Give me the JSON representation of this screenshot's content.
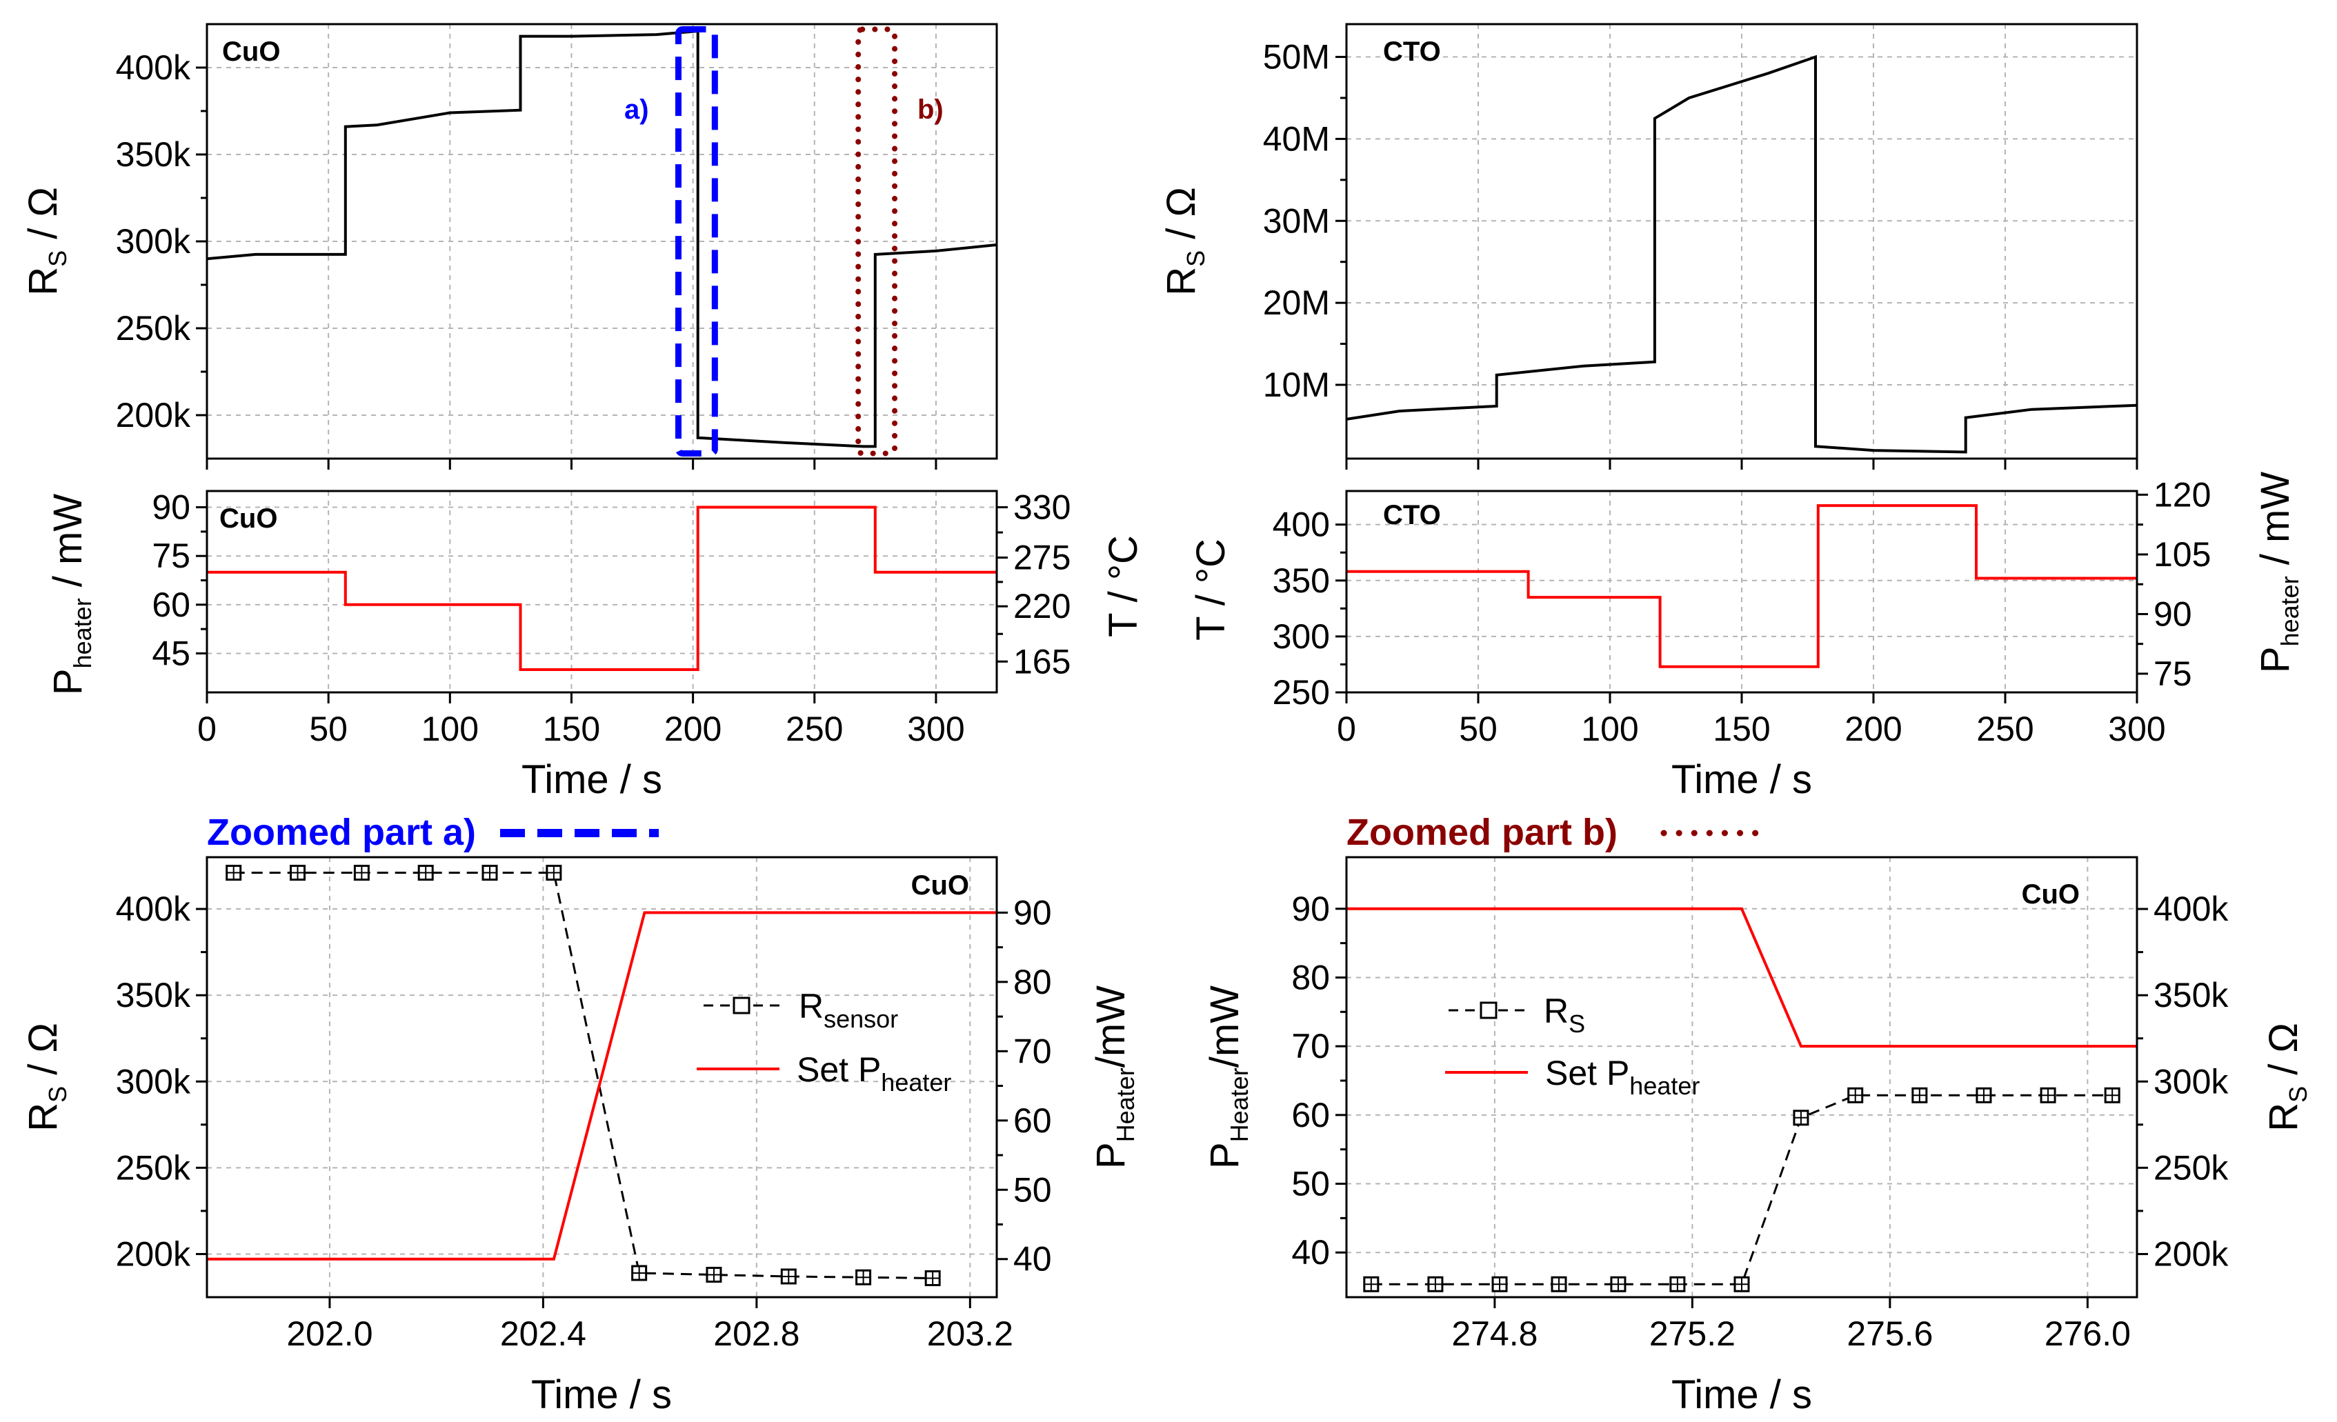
{
  "chart_data": [
    {
      "id": "cuo_rs",
      "type": "line",
      "panel_label": "CuO",
      "ylabel": "R",
      "ylabel_sub": "S",
      "ylabel_unit": " / Ω",
      "xlim": [
        0,
        325
      ],
      "ylim": [
        175000,
        425000
      ],
      "yticks": [
        200000,
        250000,
        300000,
        350000,
        400000
      ],
      "ytick_labels": [
        "200k",
        "250k",
        "300k",
        "350k",
        "400k"
      ],
      "series": [
        {
          "name": "R_S CuO",
          "color": "#000000",
          "x": [
            0,
            20,
            50,
            57,
            57,
            70,
            100,
            129,
            129,
            150,
            185,
            202,
            202,
            240,
            270,
            275,
            275,
            300,
            325
          ],
          "y": [
            290000,
            292500,
            292500,
            292500,
            366000,
            367000,
            374000,
            375500,
            418000,
            418000,
            419000,
            421000,
            187000,
            184000,
            182000,
            182000,
            292500,
            294500,
            298000
          ]
        }
      ],
      "annotations": [
        {
          "text": "a)",
          "color": "#0000ff",
          "x_range": [
            194,
            209
          ],
          "y_range": [
            178000,
            422000
          ],
          "style": "dashed"
        },
        {
          "text": "b)",
          "color": "#8b0000",
          "x_range": [
            268,
            283
          ],
          "y_range": [
            178000,
            422000
          ],
          "style": "dotted"
        }
      ]
    },
    {
      "id": "cuo_heater",
      "type": "line",
      "panel_label": "CuO",
      "xlabel": "Time / s",
      "xlim": [
        0,
        325
      ],
      "xticks": [
        0,
        50,
        100,
        150,
        200,
        250,
        300
      ],
      "xtick_labels": [
        "0",
        "50",
        "100",
        "150",
        "200",
        "250",
        "300"
      ],
      "ylabel_left": "P",
      "ylabel_left_sub": "heater",
      "ylabel_left_unit": " / mW",
      "ylim_left": [
        33,
        95
      ],
      "yticks_left": [
        45,
        60,
        75,
        90
      ],
      "ytick_labels_left": [
        "45",
        "60",
        "75",
        "90"
      ],
      "ylabel_right": "T / °C",
      "ytick_labels_right": [
        "165",
        "220",
        "275",
        "330"
      ],
      "yticks_right_at_left_values": [
        42.5,
        59.5,
        74.5,
        90
      ],
      "series": [
        {
          "name": "P_heater CuO",
          "color": "#ff0000",
          "x": [
            0,
            57,
            57,
            129,
            129,
            202,
            202,
            275,
            275,
            325
          ],
          "y": [
            70,
            70,
            60,
            60,
            40,
            40,
            90,
            90,
            70,
            70
          ]
        }
      ]
    },
    {
      "id": "cto_rs",
      "type": "line",
      "panel_label": "CTO",
      "ylabel": "R",
      "ylabel_sub": "S",
      "ylabel_unit": " / Ω",
      "xlim": [
        0,
        300
      ],
      "ylim": [
        1000000,
        54000000
      ],
      "yticks": [
        10000000,
        20000000,
        30000000,
        40000000,
        50000000
      ],
      "ytick_labels": [
        "10M",
        "20M",
        "30M",
        "40M",
        "50M"
      ],
      "series": [
        {
          "name": "R_S CTO",
          "color": "#000000",
          "x": [
            0,
            20,
            57,
            57,
            90,
            117,
            117,
            130,
            160,
            178,
            178,
            200,
            235,
            235,
            260,
            300
          ],
          "y": [
            5800000,
            6800000,
            7400000,
            11200000,
            12300000,
            12800000,
            42500000,
            45000000,
            48000000,
            50000000,
            2500000,
            2000000,
            1800000,
            6000000,
            7000000,
            7500000
          ]
        }
      ]
    },
    {
      "id": "cto_heater",
      "type": "line",
      "panel_label": "CTO",
      "xlabel": "Time / s",
      "xlim": [
        0,
        300
      ],
      "xticks": [
        0,
        50,
        100,
        150,
        200,
        250,
        300
      ],
      "xtick_labels": [
        "0",
        "50",
        "100",
        "150",
        "200",
        "250",
        "300"
      ],
      "ylabel_left": "T / °C",
      "ylim_left": [
        250,
        430
      ],
      "yticks_left": [
        250,
        300,
        350,
        400
      ],
      "ytick_labels_left": [
        "250",
        "300",
        "350",
        "400"
      ],
      "ylabel_right": "P",
      "ylabel_right_sub": "heater",
      "ylabel_right_unit": " / mW",
      "ytick_labels_right": [
        "75",
        "90",
        "105",
        "120"
      ],
      "yticks_right_at_left_values": [
        266.7,
        320,
        373.3,
        426.7
      ],
      "series": [
        {
          "name": "T CTO",
          "color": "#ff0000",
          "x": [
            0,
            69,
            69,
            119,
            119,
            179,
            179,
            239,
            239,
            300
          ],
          "y": [
            358,
            358,
            335,
            335,
            273,
            273,
            417,
            417,
            352,
            352
          ]
        }
      ]
    },
    {
      "id": "zoom_a",
      "type": "line",
      "title": "Zoomed part a)",
      "panel_label": "CuO",
      "xlabel": "Time / s",
      "xlim": [
        201.77,
        203.25
      ],
      "xticks": [
        202.0,
        202.4,
        202.8,
        203.2
      ],
      "xtick_labels": [
        "202.0",
        "202.4",
        "202.8",
        "203.2"
      ],
      "ylabel_left": "R",
      "ylabel_left_sub": "S",
      "ylabel_left_unit": " / Ω",
      "ylim_left": [
        175000,
        430000
      ],
      "yticks_left": [
        200000,
        250000,
        300000,
        350000,
        400000
      ],
      "ytick_labels_left": [
        "200k",
        "250k",
        "300k",
        "350k",
        "400k"
      ],
      "ylabel_right": "P",
      "ylabel_right_sub": "Heater",
      "ylabel_right_unit": "/mW",
      "ylim_right": [
        34.5,
        98
      ],
      "yticks_right": [
        40,
        50,
        60,
        70,
        80,
        90
      ],
      "ytick_labels_right": [
        "40",
        "50",
        "60",
        "70",
        "80",
        "90"
      ],
      "legend": [
        {
          "label": "R",
          "label_sub": "sensor",
          "style": "dashed-square"
        },
        {
          "label": "Set P",
          "label_sub": "heater",
          "style": "solid"
        }
      ],
      "series": [
        {
          "name": "R_sensor",
          "axis": "left",
          "color": "#000000",
          "style": "dashed-square",
          "x": [
            201.82,
            201.94,
            202.06,
            202.18,
            202.3,
            202.42,
            202.58,
            202.72,
            202.86,
            203.0,
            203.13
          ],
          "y": [
            421000,
            421000,
            421000,
            421000,
            421000,
            421000,
            189000,
            188000,
            187000,
            186500,
            186000
          ]
        },
        {
          "name": "Set P_heater",
          "axis": "right",
          "color": "#ff0000",
          "style": "solid",
          "x": [
            201.77,
            202.42,
            202.59,
            203.25
          ],
          "y": [
            40,
            40,
            90,
            90
          ]
        }
      ]
    },
    {
      "id": "zoom_b",
      "type": "line",
      "title": "Zoomed part b)",
      "panel_label": "CuO",
      "xlabel": "Time / s",
      "xlim": [
        274.5,
        276.1
      ],
      "xticks": [
        274.8,
        275.2,
        275.6,
        276.0
      ],
      "xtick_labels": [
        "274.8",
        "275.2",
        "275.6",
        "276.0"
      ],
      "ylabel_left": "P",
      "ylabel_left_sub": "Heater",
      "ylabel_left_unit": "/mW",
      "ylim_left": [
        33.5,
        97.5
      ],
      "yticks_left": [
        40,
        50,
        60,
        70,
        80,
        90
      ],
      "ytick_labels_left": [
        "40",
        "50",
        "60",
        "70",
        "80",
        "90"
      ],
      "ylabel_right": "R",
      "ylabel_right_sub": "S",
      "ylabel_right_unit": " / Ω",
      "ylim_right": [
        175000,
        430000
      ],
      "yticks_right": [
        200000,
        250000,
        300000,
        350000,
        400000
      ],
      "ytick_labels_right": [
        "200k",
        "250k",
        "300k",
        "350k",
        "400k"
      ],
      "legend": [
        {
          "label": "R",
          "label_sub": "S",
          "style": "dashed-square"
        },
        {
          "label": "Set P",
          "label_sub": "heater",
          "style": "solid"
        }
      ],
      "series": [
        {
          "name": "R_S",
          "axis": "right",
          "color": "#000000",
          "style": "dashed-square",
          "x": [
            274.55,
            274.68,
            274.81,
            274.93,
            275.05,
            275.17,
            275.3,
            275.42,
            275.53,
            275.66,
            275.79,
            275.92,
            276.05
          ],
          "y": [
            182500,
            182500,
            182500,
            182500,
            182500,
            182500,
            182500,
            279000,
            292000,
            292000,
            292000,
            292000,
            292000
          ]
        },
        {
          "name": "Set P_heater",
          "axis": "left",
          "color": "#ff0000",
          "style": "solid",
          "x": [
            274.5,
            275.3,
            275.42,
            276.1
          ],
          "y": [
            90,
            90,
            70,
            70
          ]
        }
      ]
    }
  ]
}
